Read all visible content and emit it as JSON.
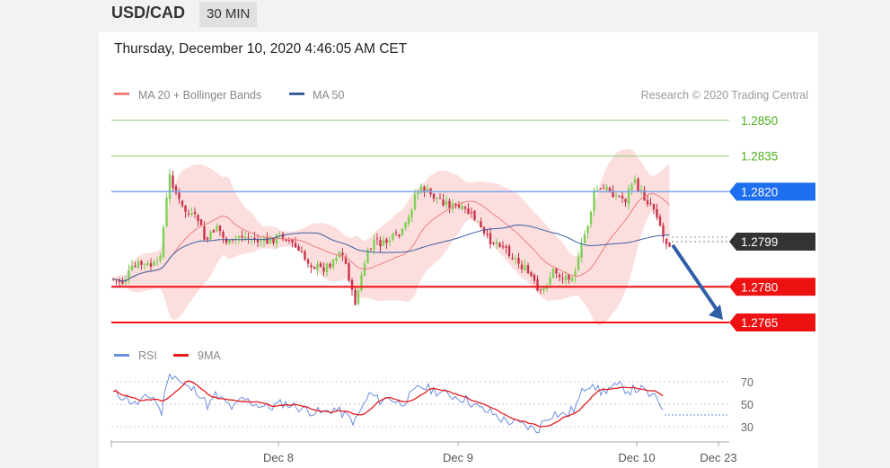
{
  "header": {
    "symbol": "USD/CAD",
    "timeframe": "30 MIN",
    "datetime": "Thursday, December 10, 2020 4:46:05 AM CET"
  },
  "colors": {
    "ma20": "#f08080",
    "ma50": "#3a5f9f",
    "band": "#fbd3d3",
    "resistance": "#8fce6f",
    "resistance_text": "#4caf1a",
    "pivot_blue": "#1e6ff0",
    "support_red": "#ee1111",
    "current": "#333333",
    "rsi": "#6a8ee0",
    "rsi_ma": "#e61c1c",
    "candle_up": "#7ecf55",
    "candle_down": "#c8344a",
    "arrow": "#2f5fa8"
  },
  "chart_data": {
    "type": "candlestick",
    "legend": [
      {
        "name": "MA 20 + Bollinger Bands",
        "color": "#f08080"
      },
      {
        "name": "MA 50",
        "color": "#3a5f9f"
      }
    ],
    "copyright": "Research © 2020 Trading Central",
    "y_range": [
      1.2757,
      1.2857
    ],
    "levels": [
      {
        "value": 1.285,
        "label": "1.2850",
        "kind": "resistance"
      },
      {
        "value": 1.2835,
        "label": "1.2835",
        "kind": "resistance"
      },
      {
        "value": 1.282,
        "label": "1.2820",
        "kind": "pivot"
      },
      {
        "value": 1.2799,
        "label": "1.2799",
        "kind": "current"
      },
      {
        "value": 1.278,
        "label": "1.2780",
        "kind": "support"
      },
      {
        "value": 1.2765,
        "label": "1.2765",
        "kind": "support"
      }
    ],
    "forecast": {
      "from": 1.2797,
      "to": 1.2765
    },
    "x_ticks": [
      "Dec 8",
      "Dec 9",
      "Dec 10",
      "Dec 23"
    ],
    "rsi": {
      "legend": [
        {
          "name": "RSI",
          "color": "#6a8ee0"
        },
        {
          "name": "9MA",
          "color": "#e61c1c"
        }
      ],
      "levels": [
        "70",
        "50",
        "30"
      ],
      "range": [
        25,
        80
      ]
    }
  }
}
